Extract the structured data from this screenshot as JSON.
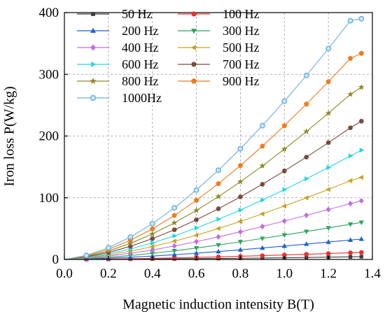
{
  "chart_data": {
    "type": "line",
    "xlabel": "Magnetic induction intensity B(T)",
    "ylabel": "Iron loss P(W/kg)",
    "xlim": [
      0.0,
      1.4
    ],
    "ylim": [
      0,
      400
    ],
    "xticks": [
      "0.0",
      "0.2",
      "0.4",
      "0.6",
      "0.8",
      "1.0",
      "1.2",
      "1.4"
    ],
    "yticks": [
      "0",
      "100",
      "200",
      "300",
      "400"
    ],
    "grid": true,
    "legend_position": "top-left",
    "series": [
      {
        "name": "50 Hz",
        "color": "#3c3c3c",
        "marker": "square",
        "x": [
          0.0,
          0.1,
          0.2,
          0.3,
          0.4,
          0.5,
          0.6,
          0.7,
          0.8,
          0.9,
          1.0,
          1.1,
          1.2,
          1.3,
          1.35
        ],
        "y": [
          0,
          0.1,
          0.3,
          0.5,
          0.8,
          1.0,
          1.3,
          1.6,
          2.0,
          2.4,
          2.8,
          3.2,
          3.7,
          4.2,
          4.5
        ]
      },
      {
        "name": "100 Hz",
        "color": "#e8312f",
        "marker": "circle",
        "x": [
          0.0,
          0.1,
          0.2,
          0.3,
          0.4,
          0.5,
          0.6,
          0.7,
          0.8,
          0.9,
          1.0,
          1.1,
          1.2,
          1.3,
          1.35
        ],
        "y": [
          0,
          0.3,
          0.7,
          1.2,
          1.8,
          2.5,
          3.3,
          4.2,
          5.2,
          6.2,
          7.3,
          8.4,
          9.6,
          10.8,
          11.4
        ]
      },
      {
        "name": "200 Hz",
        "color": "#1f5fd0",
        "marker": "triangle-up",
        "x": [
          0.0,
          0.1,
          0.2,
          0.3,
          0.4,
          0.5,
          0.6,
          0.7,
          0.8,
          0.9,
          1.0,
          1.1,
          1.2,
          1.3,
          1.35
        ],
        "y": [
          0,
          0.8,
          2.0,
          3.6,
          5.5,
          7.7,
          10.1,
          12.8,
          15.6,
          18.6,
          21.7,
          24.9,
          28.2,
          31.5,
          33
        ]
      },
      {
        "name": "300 Hz",
        "color": "#2ea35f",
        "marker": "triangle-down",
        "x": [
          0.0,
          0.1,
          0.2,
          0.3,
          0.4,
          0.5,
          0.6,
          0.7,
          0.8,
          0.9,
          1.0,
          1.1,
          1.2,
          1.3,
          1.35
        ],
        "y": [
          0,
          1.3,
          3.5,
          6.4,
          9.9,
          14.0,
          18.5,
          23.4,
          28.6,
          34.0,
          39.6,
          45.3,
          51.1,
          57.0,
          60
        ]
      },
      {
        "name": "400 Hz",
        "color": "#c06de0",
        "marker": "diamond",
        "x": [
          0.0,
          0.1,
          0.2,
          0.3,
          0.4,
          0.5,
          0.6,
          0.7,
          0.8,
          0.9,
          1.0,
          1.1,
          1.2,
          1.3,
          1.35
        ],
        "y": [
          0,
          2.0,
          5.4,
          9.9,
          15.4,
          21.8,
          28.9,
          36.6,
          44.8,
          53.4,
          62.3,
          71.5,
          80.9,
          90.5,
          95
        ]
      },
      {
        "name": "500 Hz",
        "color": "#c8a21c",
        "marker": "triangle-left",
        "x": [
          0.0,
          0.1,
          0.2,
          0.3,
          0.4,
          0.5,
          0.6,
          0.7,
          0.8,
          0.9,
          1.0,
          1.1,
          1.2,
          1.3,
          1.35
        ],
        "y": [
          0,
          2.5,
          7.1,
          13.3,
          20.8,
          29.6,
          39.4,
          50.1,
          61.6,
          73.8,
          86.5,
          99.8,
          113.5,
          127.5,
          133
        ]
      },
      {
        "name": "600 Hz",
        "color": "#22d6e0",
        "marker": "triangle-right",
        "x": [
          0.0,
          0.1,
          0.2,
          0.3,
          0.4,
          0.5,
          0.6,
          0.7,
          0.8,
          0.9,
          1.0,
          1.1,
          1.2,
          1.3,
          1.35
        ],
        "y": [
          0,
          3.2,
          9.0,
          17.0,
          26.8,
          38.2,
          51.0,
          65.1,
          80.2,
          96.3,
          113.2,
          130.8,
          149.0,
          167.8,
          177
        ]
      },
      {
        "name": "700 Hz",
        "color": "#7a4a3a",
        "marker": "hexagon",
        "x": [
          0.0,
          0.1,
          0.2,
          0.3,
          0.4,
          0.5,
          0.6,
          0.7,
          0.8,
          0.9,
          1.0,
          1.1,
          1.2,
          1.3,
          1.35
        ],
        "y": [
          0,
          4.0,
          11.3,
          21.3,
          33.7,
          48.1,
          64.3,
          82.2,
          101.4,
          121.8,
          143.4,
          165.9,
          189.2,
          213.3,
          224
        ]
      },
      {
        "name": "800 Hz",
        "color": "#8e8a26",
        "marker": "star",
        "x": [
          0.0,
          0.1,
          0.2,
          0.3,
          0.4,
          0.5,
          0.6,
          0.7,
          0.8,
          0.9,
          1.0,
          1.1,
          1.2,
          1.3,
          1.35
        ],
        "y": [
          0,
          4.8,
          13.7,
          26.0,
          41.3,
          59.3,
          79.5,
          101.8,
          125.9,
          151.6,
          178.8,
          207.3,
          236.9,
          267.6,
          279
        ]
      },
      {
        "name": "900 Hz",
        "color": "#f07a1e",
        "marker": "pentagon",
        "x": [
          0.0,
          0.1,
          0.2,
          0.3,
          0.4,
          0.5,
          0.6,
          0.7,
          0.8,
          0.9,
          1.0,
          1.1,
          1.2,
          1.3,
          1.35
        ],
        "y": [
          0,
          5.7,
          16.3,
          31.1,
          49.6,
          71.3,
          95.8,
          122.9,
          152.2,
          183.6,
          216.8,
          251.7,
          288.1,
          325.8,
          334
        ]
      },
      {
        "name": "1000Hz",
        "color": "#6aaee0",
        "marker": "circle-open",
        "x": [
          0.0,
          0.1,
          0.2,
          0.3,
          0.4,
          0.5,
          0.6,
          0.7,
          0.8,
          0.9,
          1.0,
          1.1,
          1.2,
          1.3,
          1.35
        ],
        "y": [
          0,
          6.6,
          19.0,
          36.3,
          58.0,
          83.6,
          112.5,
          144.6,
          179.4,
          216.8,
          256.4,
          298.1,
          341.6,
          386.8,
          390
        ]
      }
    ]
  }
}
